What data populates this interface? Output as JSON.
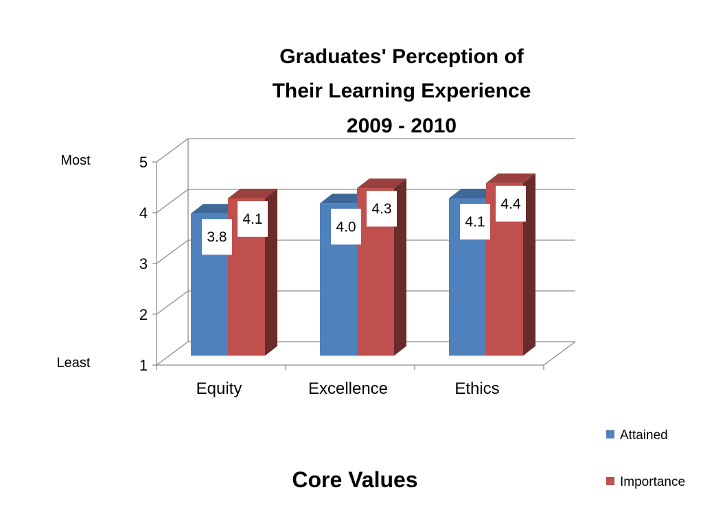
{
  "chart_data": {
    "type": "bar",
    "title_lines": [
      "Graduates' Perception of",
      "Their Learning Experience",
      "2009 - 2010"
    ],
    "xlabel": "Core Values",
    "ylabel": "",
    "y_anchor_top": "Most",
    "y_anchor_bottom": "Least",
    "categories": [
      "Equity",
      "Excellence",
      "Ethics"
    ],
    "ylim": [
      1,
      5
    ],
    "yticks": [
      "1",
      "2",
      "3",
      "4",
      "5"
    ],
    "grid": true,
    "legend_position": "bottom-right",
    "series": [
      {
        "name": "Attained",
        "values": [
          3.8,
          4.0,
          4.1
        ],
        "labels": [
          "3.8",
          "4.0",
          "4.1"
        ],
        "color": "#4F81BD"
      },
      {
        "name": "Importance",
        "values": [
          4.1,
          4.3,
          4.4
        ],
        "labels": [
          "4.1",
          "4.3",
          "4.4"
        ],
        "color": "#C0504D"
      }
    ]
  }
}
